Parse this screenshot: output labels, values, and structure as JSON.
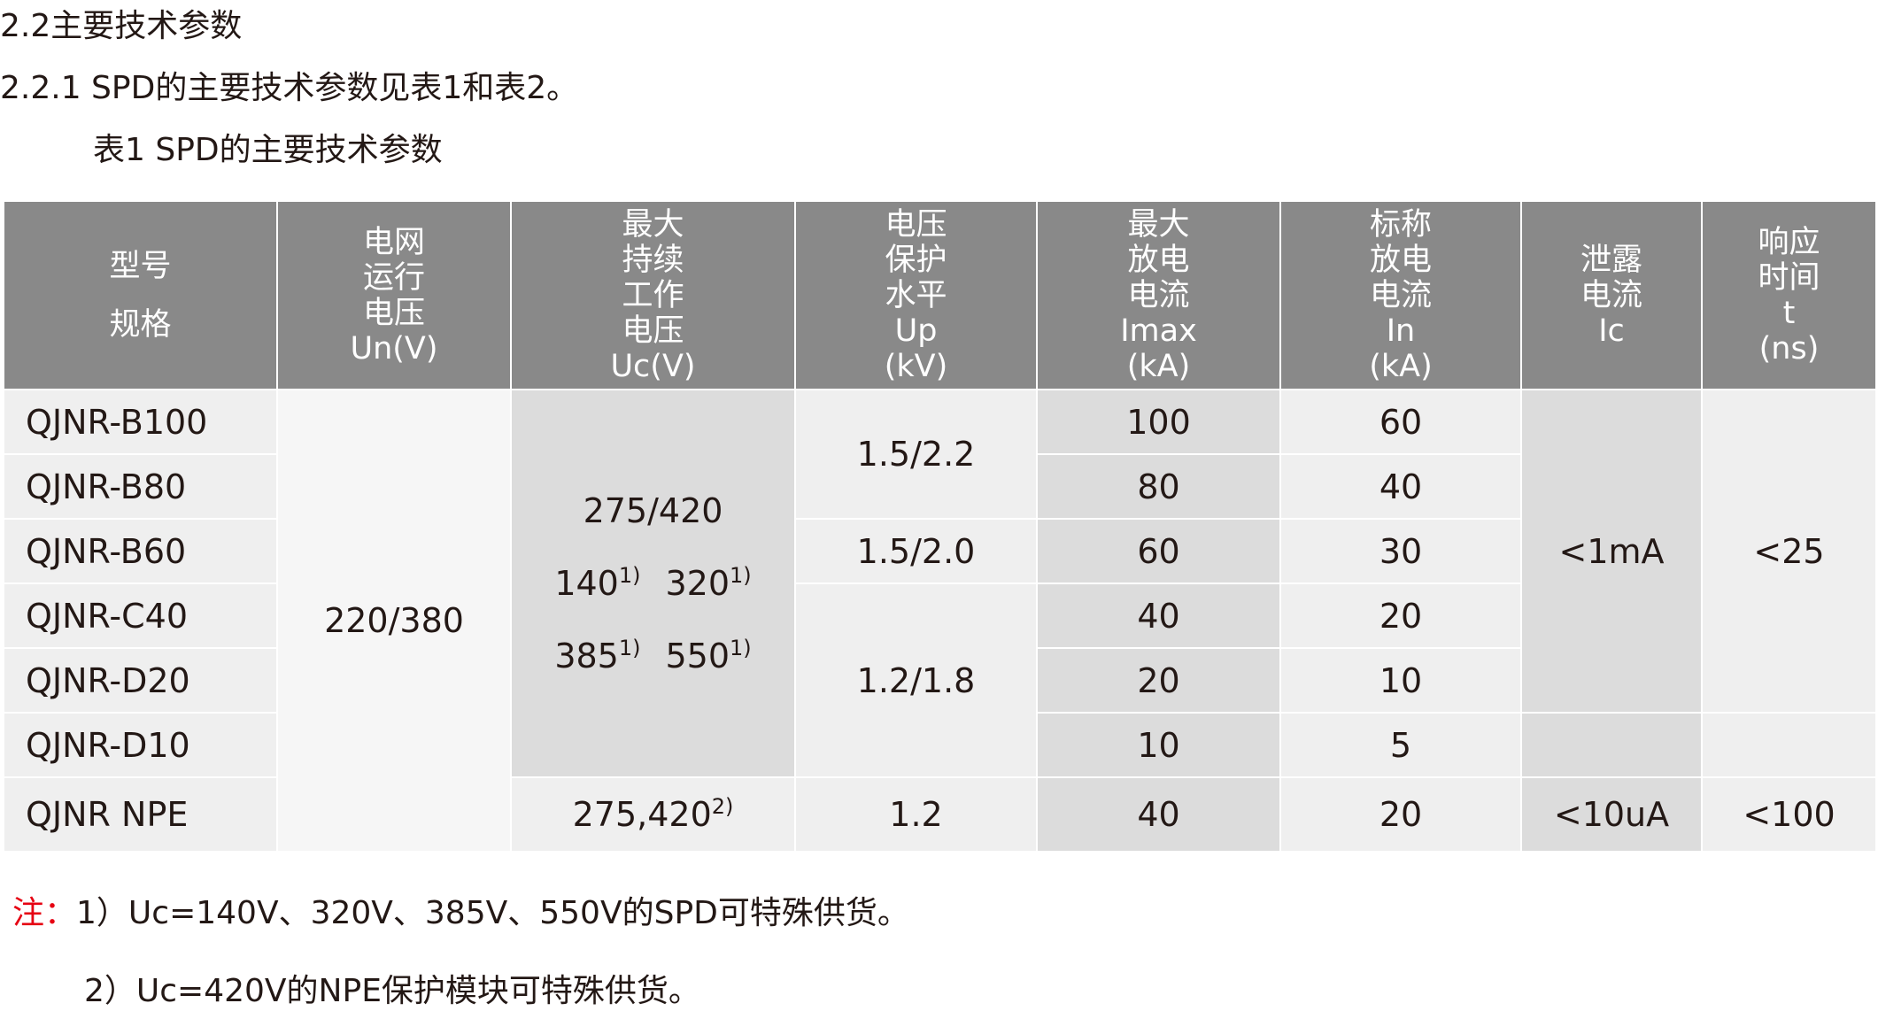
{
  "header": {
    "title": "2.2主要技术参数",
    "intro": "2.2.1 SPD的主要技术参数见表1和表2。",
    "caption": "表1 SPD的主要技术参数"
  },
  "table": {
    "headers": [
      [
        "型号",
        "规格"
      ],
      [
        "电网",
        "运行",
        "电压",
        "Un(V)"
      ],
      [
        "最大",
        "持续",
        "工作",
        "电压",
        "Uc(V)"
      ],
      [
        "电压",
        "保护",
        "水平",
        "Up",
        "(kV)"
      ],
      [
        "最大",
        "放电",
        "电流",
        "Imax",
        "(kA)"
      ],
      [
        "标称",
        "放电",
        "电流",
        "In",
        "(kA)"
      ],
      [
        "泄露",
        "电流",
        "Ic"
      ],
      [
        "响应",
        "时间",
        "t",
        "(ns)"
      ]
    ],
    "rows": [
      [
        "QJNR-B100",
        "220/380",
        {
          "lines": [
            [
              {
                "t": "275/420"
              }
            ],
            [
              {
                "t": "140",
                "sup": "1)"
              },
              {
                "t": "320",
                "sup": "1)"
              }
            ],
            [
              {
                "t": "385",
                "sup": "1)"
              },
              {
                "t": "550",
                "sup": "1)"
              }
            ]
          ]
        },
        "1.5/2.2",
        "100",
        "60",
        "<1mA",
        "<25"
      ],
      [
        "QJNR-B80",
        "80",
        "40"
      ],
      [
        "QJNR-B60",
        "1.5/2.0",
        "60",
        "30"
      ],
      [
        "QJNR-C40",
        "1.2/1.8",
        "40",
        "20"
      ],
      [
        "QJNR-D20",
        "20",
        "10"
      ],
      [
        "QJNR-D10",
        "10",
        "5"
      ],
      [
        "QJNR NPE",
        {
          "lines": [
            [
              {
                "t": "275,420",
                "sup": "2)"
              }
            ]
          ]
        },
        "1.2",
        "40",
        "20",
        "<10uA",
        "<100"
      ]
    ]
  },
  "notes": {
    "label": "注：",
    "items": [
      "1）Uc=140V、320V、385V、550V的SPD可特殊供货。",
      "2）Uc=420V的NPE保护模块可特殊供货。"
    ]
  }
}
